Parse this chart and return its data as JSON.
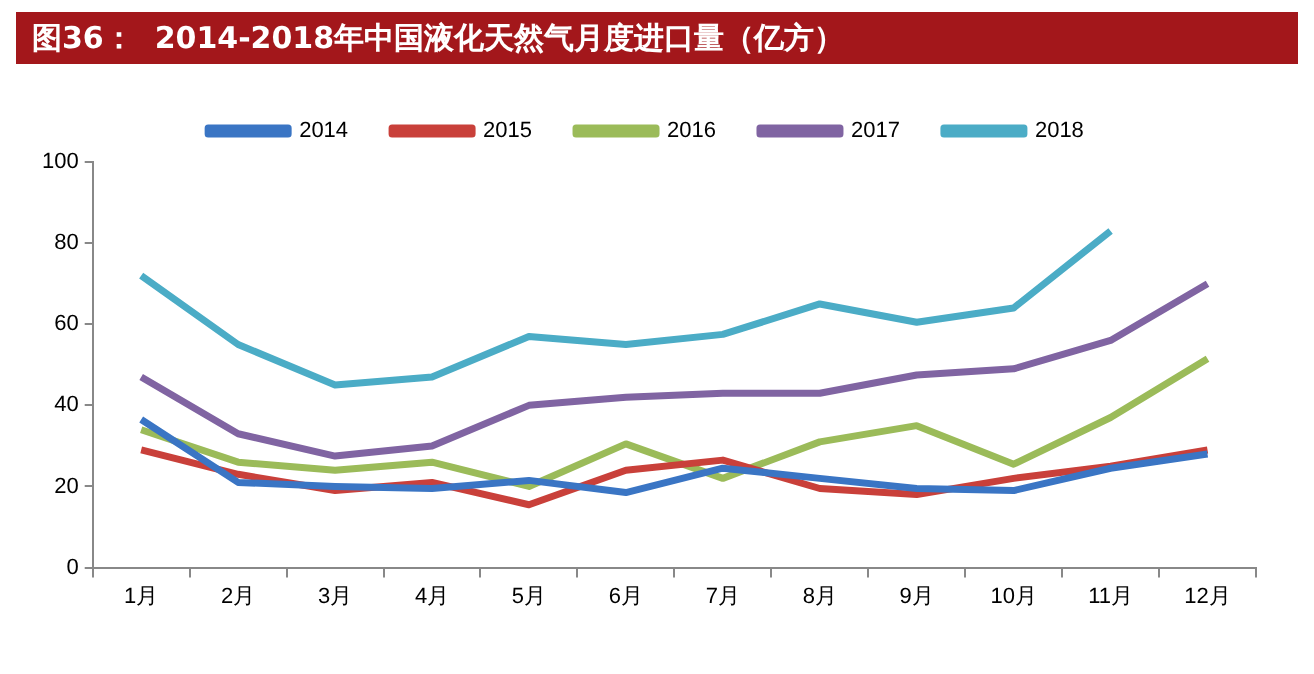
{
  "chart_data": {
    "type": "line",
    "title": "图36：  2014-2018年中国液化天然气月度进口量（亿方）",
    "categories": [
      "1月",
      "2月",
      "3月",
      "4月",
      "5月",
      "6月",
      "7月",
      "8月",
      "9月",
      "10月",
      "11月",
      "12月"
    ],
    "ylim": [
      0,
      100
    ],
    "yticks": [
      0,
      20,
      40,
      60,
      80,
      100
    ],
    "grid": false,
    "legend": "top",
    "marker": "none",
    "series": [
      {
        "name": "2014",
        "color": "#3a75c4",
        "values": [
          36.5,
          21,
          20,
          19.5,
          21.5,
          18.5,
          24.5,
          22,
          19.5,
          19,
          24.5,
          28
        ]
      },
      {
        "name": "2015",
        "color": "#c9403a",
        "values": [
          29,
          23,
          19,
          21,
          15.5,
          24,
          26.5,
          19.5,
          18,
          22,
          25,
          29
        ]
      },
      {
        "name": "2016",
        "color": "#9bbb59",
        "values": [
          34,
          26,
          24,
          26,
          20,
          30.5,
          22,
          31,
          35,
          25.5,
          37,
          51.5
        ]
      },
      {
        "name": "2017",
        "color": "#8064a2",
        "values": [
          47,
          33,
          27.5,
          30,
          40,
          42,
          43,
          43,
          47.5,
          49,
          56,
          70
        ]
      },
      {
        "name": "2018",
        "color": "#4bacc6",
        "values": [
          72,
          55,
          45,
          47,
          57,
          55,
          57.5,
          65,
          60.5,
          64,
          83,
          null
        ]
      }
    ]
  }
}
